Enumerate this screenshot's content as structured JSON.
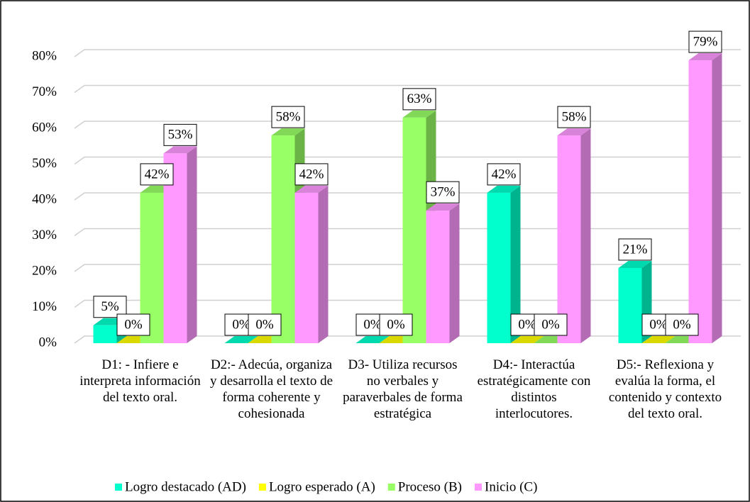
{
  "chart_data": {
    "type": "bar3d",
    "categories": [
      "D1:  - Infiere e interpreta información del texto oral.",
      "D2:- Adecúa, organiza y desarrolla el texto de forma coherente y cohesionada",
      "D3- Utiliza recursos no verbales y paraverbales de forma estratégica",
      "D4:- Interactúa estratégicamente con distintos interlocutores.",
      "D5:- Reflexiona y evalúa la forma, el contenido y contexto del texto oral."
    ],
    "series": [
      {
        "name": "Logro destacado (AD)",
        "color": "#00ffcc",
        "values": [
          5,
          0,
          0,
          42,
          21
        ],
        "value_labels": [
          "5%",
          "0%",
          "0%",
          "42%",
          "21%"
        ]
      },
      {
        "name": "Logro esperado (A)",
        "color": "#ffff00",
        "values": [
          0,
          0,
          0,
          0,
          0
        ],
        "value_labels": [
          "0%",
          "0%",
          "0%",
          "0%",
          "0%"
        ]
      },
      {
        "name": "Proceso (B)",
        "color": "#99ff66",
        "values": [
          42,
          58,
          63,
          0,
          0
        ],
        "value_labels": [
          "42%",
          "58%",
          "63%",
          "0%",
          "0%"
        ]
      },
      {
        "name": "Inicio (C)",
        "color": "#ff99ff",
        "values": [
          53,
          42,
          37,
          58,
          79
        ],
        "value_labels": [
          "53%",
          "42%",
          "37%",
          "58%",
          "79%"
        ]
      }
    ],
    "ylim": [
      0,
      80
    ],
    "yticks": [
      {
        "value": 0,
        "label": "0%"
      },
      {
        "value": 10,
        "label": "10%"
      },
      {
        "value": 20,
        "label": "20%"
      },
      {
        "value": 30,
        "label": "30%"
      },
      {
        "value": 40,
        "label": "40%"
      },
      {
        "value": 50,
        "label": "50%"
      },
      {
        "value": 60,
        "label": "60%"
      },
      {
        "value": 70,
        "label": "70%"
      },
      {
        "value": 80,
        "label": "80%"
      }
    ],
    "grid": true,
    "legend": "bottom"
  }
}
